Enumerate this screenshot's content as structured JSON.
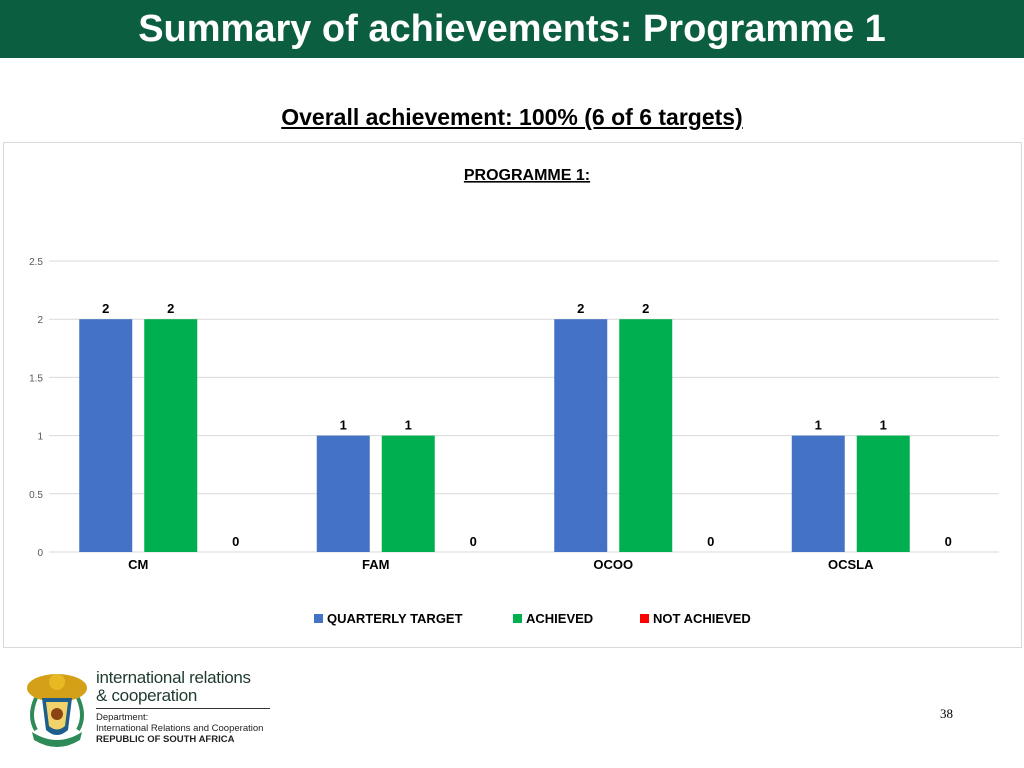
{
  "header": {
    "title": "Summary of achievements: Programme 1"
  },
  "subtitle": "Overall achievement: 100% (6 of 6 targets)",
  "colors": {
    "header_bg": "#0b5e3f",
    "quarterly_target": "#4472c4",
    "achieved": "#00b050",
    "not_achieved": "#ff0000"
  },
  "chart_data": {
    "type": "bar",
    "title": "PROGRAMME 1: ",
    "categories": [
      "CM",
      "FAM",
      "OCOO",
      "OCSLA"
    ],
    "series": [
      {
        "name": "QUARTERLY TARGET",
        "values": [
          2,
          1,
          2,
          1
        ],
        "color": "#4472c4"
      },
      {
        "name": "ACHIEVED",
        "values": [
          2,
          1,
          2,
          1
        ],
        "color": "#00b050"
      },
      {
        "name": "NOT ACHIEVED",
        "values": [
          0,
          0,
          0,
          0
        ],
        "color": "#ff0000"
      }
    ],
    "y_ticks": [
      "0",
      "0.5",
      "1",
      "1.5",
      "2",
      "2.5"
    ],
    "ylim": [
      0,
      2.5
    ],
    "grid": true,
    "legend_position": "bottom",
    "data_labels": true
  },
  "footer": {
    "brand_line1": "international relations",
    "brand_line2": "& cooperation",
    "dept_label": "Department:",
    "dept_name": "International Relations and Cooperation",
    "country": "REPUBLIC OF SOUTH AFRICA",
    "page_number": "38"
  }
}
